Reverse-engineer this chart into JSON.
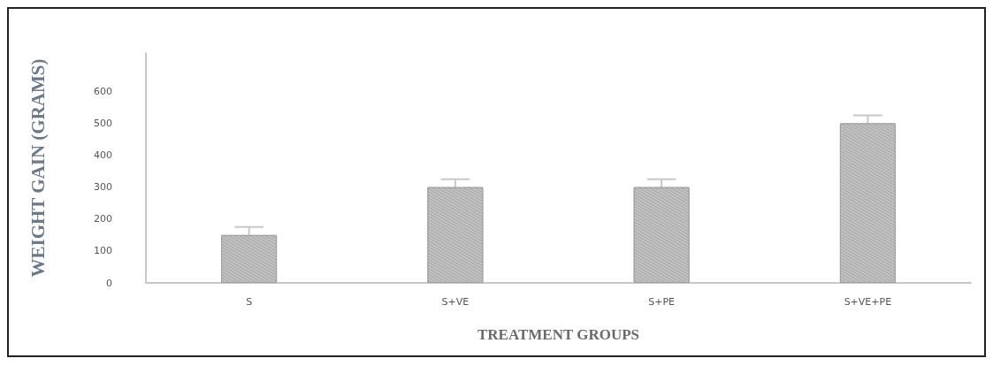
{
  "chart_data": {
    "type": "bar",
    "xlabel": "TREATMENT GROUPS",
    "ylabel": "WEIGHT GAIN (GRAMS)",
    "categories": [
      "S",
      "S+VE",
      "S+PE",
      "S+VE+PE"
    ],
    "values": [
      150,
      300,
      300,
      500
    ],
    "errors": [
      25,
      25,
      25,
      25
    ],
    "color": "#b0b0b0",
    "ylim": [
      0,
      720
    ],
    "yticks": [
      0,
      100,
      200,
      300,
      400,
      500,
      600
    ],
    "grid": false
  }
}
